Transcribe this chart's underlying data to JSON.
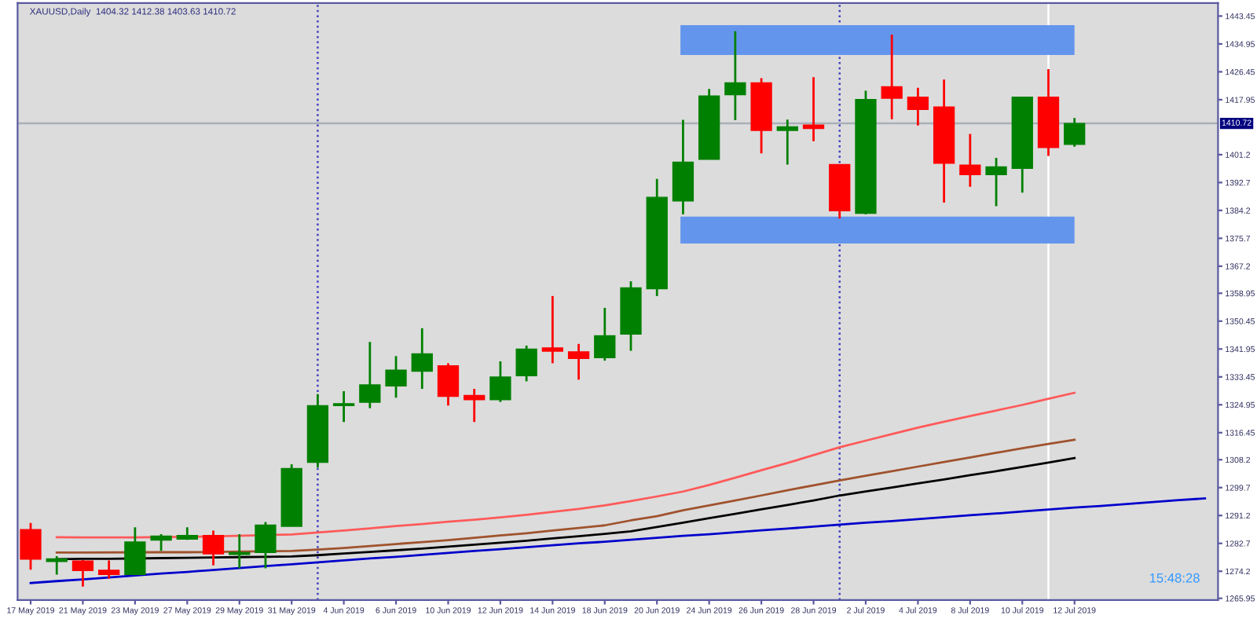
{
  "chart_data": {
    "type": "candlestick",
    "title": "XAUUSD,Daily  1404.32 1412.38 1403.63 1410.72",
    "categories": [
      "17 May 2019",
      null,
      "21 May 2019",
      null,
      "23 May 2019",
      null,
      "27 May 2019",
      null,
      "29 May 2019",
      null,
      "31 May 2019",
      null,
      "4 Jun 2019",
      null,
      "6 Jun 2019",
      null,
      "10 Jun 2019",
      null,
      "12 Jun 2019",
      null,
      "14 Jun 2019",
      null,
      "18 Jun 2019",
      null,
      "20 Jun 2019",
      null,
      "24 Jun 2019",
      null,
      "26 Jun 2019",
      null,
      "28 Jun 2019",
      null,
      "2 Jul 2019",
      null,
      "4 Jul 2019",
      null,
      "8 Jul 2019",
      null,
      "10 Jul 2019",
      null,
      "12 Jul 2019",
      null,
      null,
      null,
      null,
      null
    ],
    "ohlc": [
      [
        1286.9,
        1288.9,
        1274.7,
        1277.9
      ],
      [
        1277.2,
        1278.8,
        1273.2,
        1278.0
      ],
      [
        1277.3,
        1277.6,
        1269.5,
        1274.4
      ],
      [
        1274.5,
        1277.5,
        1272.0,
        1273.2
      ],
      [
        1273.2,
        1287.6,
        1273.0,
        1283.1
      ],
      [
        1283.7,
        1285.5,
        1280.4,
        1284.9
      ],
      [
        1284.0,
        1287.6,
        1283.8,
        1285.1
      ],
      [
        1285.1,
        1286.6,
        1276.0,
        1279.5
      ],
      [
        1279.3,
        1285.5,
        1275.1,
        1279.9
      ],
      [
        1279.9,
        1289.2,
        1275.1,
        1288.3
      ],
      [
        1287.9,
        1306.8,
        1287.9,
        1305.5
      ],
      [
        1307.4,
        1328.2,
        1305.8,
        1324.7
      ],
      [
        1324.7,
        1329.1,
        1319.7,
        1325.3
      ],
      [
        1325.7,
        1344.1,
        1323.9,
        1331.0
      ],
      [
        1330.7,
        1339.8,
        1327.1,
        1335.5
      ],
      [
        1335.2,
        1348.3,
        1329.8,
        1340.5
      ],
      [
        1336.8,
        1337.6,
        1324.7,
        1327.5
      ],
      [
        1327.8,
        1329.8,
        1319.7,
        1326.5
      ],
      [
        1326.5,
        1338.2,
        1325.8,
        1333.4
      ],
      [
        1333.8,
        1343.0,
        1332.1,
        1341.9
      ],
      [
        1342.3,
        1358.1,
        1337.6,
        1341.3
      ],
      [
        1341.1,
        1343.5,
        1332.6,
        1339.1
      ],
      [
        1339.3,
        1354.5,
        1338.4,
        1346.0
      ],
      [
        1346.5,
        1362.6,
        1341.4,
        1360.6
      ],
      [
        1360.3,
        1393.8,
        1358.1,
        1388.2
      ],
      [
        1387.1,
        1411.8,
        1383.0,
        1398.9
      ],
      [
        1399.8,
        1421.2,
        1399.8,
        1419.1
      ],
      [
        1419.5,
        1438.8,
        1411.7,
        1423.1
      ],
      [
        1423.1,
        1424.5,
        1401.6,
        1408.6
      ],
      [
        1408.6,
        1411.9,
        1398.2,
        1409.7
      ],
      [
        1410.2,
        1424.8,
        1405.3,
        1409.2
      ],
      [
        1398.2,
        1398.2,
        1381.7,
        1384.1
      ],
      [
        1383.3,
        1420.7,
        1383.0,
        1418.0
      ],
      [
        1421.9,
        1437.8,
        1412.0,
        1418.4
      ],
      [
        1418.7,
        1421.6,
        1410.1,
        1415.0
      ],
      [
        1415.7,
        1424.1,
        1386.6,
        1398.6
      ],
      [
        1398.0,
        1407.5,
        1391.4,
        1395.1
      ],
      [
        1395.1,
        1400.2,
        1385.5,
        1397.5
      ],
      [
        1397.0,
        1418.7,
        1389.6,
        1418.7
      ],
      [
        1418.7,
        1427.3,
        1400.8,
        1403.4
      ],
      [
        1404.32,
        1412.38,
        1403.63,
        1410.72
      ],
      null,
      null,
      null,
      null,
      null
    ],
    "colors": [
      "#ff0000",
      "#008000",
      "#ff0000",
      "#ff0000",
      "#008000",
      "#008000",
      "#008000",
      "#ff0000",
      "#008000",
      "#008000",
      "#008000",
      "#008000",
      "#008000",
      "#008000",
      "#008000",
      "#008000",
      "#ff0000",
      "#ff0000",
      "#008000",
      "#008000",
      "#ff0000",
      "#ff0000",
      "#008000",
      "#008000",
      "#008000",
      "#008000",
      "#008000",
      "#008000",
      "#ff0000",
      "#008000",
      "#ff0000",
      "#ff0000",
      "#008000",
      "#ff0000",
      "#ff0000",
      "#ff0000",
      "#ff0000",
      "#008000",
      "#008000",
      "#ff0000",
      "#008000",
      null,
      null,
      null,
      null,
      null
    ],
    "series": [
      {
        "type": "line",
        "color": "#ff5a5a",
        "values": [
          null,
          1284.6,
          1284.5,
          1284.5,
          1284.5,
          null,
          null,
          1284.8,
          null,
          null,
          1285.4,
          1286.0,
          1286.6,
          1287.3,
          1288.0,
          1288.6,
          1289.3,
          1289.9,
          1290.6,
          1291.4,
          1292.3,
          1293.2,
          1294.3,
          1295.6,
          1297.0,
          1298.5,
          1300.5,
          1302.7,
          1305.0,
          1307.2,
          1309.6,
          1312.0,
          1314.0,
          1316.0,
          1318.0,
          1319.8,
          1321.5,
          1323.2,
          1324.9,
          1326.8,
          1328.6,
          null,
          null,
          null,
          null,
          null
        ]
      },
      {
        "type": "line",
        "color": "#a0522d",
        "values": [
          null,
          1279.9,
          1279.9,
          null,
          null,
          1280.0,
          1280.0,
          1280.1,
          null,
          null,
          1280.4,
          1280.8,
          1281.3,
          1281.9,
          1282.5,
          1283.1,
          1283.7,
          1284.4,
          1285.1,
          1285.8,
          1286.6,
          1287.4,
          1288.2,
          1289.7,
          1291.0,
          1292.8,
          1294.3,
          1295.8,
          1297.3,
          1298.9,
          1300.4,
          1301.9,
          1303.3,
          1304.7,
          1306.1,
          1307.5,
          1308.9,
          1310.3,
          1311.7,
          1313.0,
          1314.3,
          null,
          null,
          null,
          null,
          null
        ]
      },
      {
        "type": "line",
        "color": "#000000",
        "values": [
          null,
          1277.9,
          1278.0,
          1278.0,
          null,
          1278.2,
          1278.3,
          1278.4,
          1278.5,
          1278.6,
          1278.7,
          1279.1,
          1279.6,
          1280.1,
          1280.6,
          1281.1,
          1281.7,
          1282.3,
          1282.9,
          1283.5,
          1284.2,
          1284.9,
          1285.6,
          1286.4,
          1287.7,
          1289.0,
          1290.4,
          1291.7,
          1293.1,
          1294.4,
          1295.8,
          1297.3,
          1298.5,
          1299.7,
          1301.0,
          1302.2,
          1303.5,
          1304.7,
          1306.0,
          1307.3,
          1308.7,
          null,
          null,
          null,
          null,
          null
        ]
      },
      {
        "type": "line",
        "color": "#0000cc",
        "values": [
          1270.6,
          1271.2,
          1271.7,
          1272.3,
          1272.9,
          1273.5,
          1274.0,
          1274.6,
          1275.2,
          1275.8,
          1276.3,
          1276.9,
          1277.5,
          1278.1,
          1278.6,
          1279.2,
          1279.8,
          1280.4,
          1280.9,
          1281.5,
          1282.1,
          1282.7,
          1283.2,
          1283.8,
          1284.4,
          1285.0,
          1285.5,
          1286.1,
          1286.7,
          1287.2,
          1287.8,
          1288.4,
          1289.0,
          1289.5,
          1290.1,
          1290.7,
          1291.3,
          1291.8,
          1292.4,
          1293.0,
          1293.6,
          1294.1,
          1294.7,
          1295.3,
          1295.9,
          1296.4
        ]
      }
    ],
    "ylim": [
      1265.4,
      1447.4
    ],
    "yticks": [
      1443.45,
      1434.95,
      1426.45,
      1417.95,
      1401.2,
      1392.7,
      1384.2,
      1375.7,
      1367.2,
      1358.95,
      1350.45,
      1341.95,
      1333.45,
      1324.95,
      1316.45,
      1308.2,
      1299.7,
      1291.2,
      1282.7,
      1274.2,
      1265.95
    ],
    "ref_lines": [
      {
        "axis": "y",
        "value": 1410.72,
        "label": "1410.72",
        "color": "#a9b0b8",
        "line_style": "solid"
      }
    ],
    "bands": [
      {
        "axis": "y",
        "from": 1431.6,
        "to": 1440.7,
        "color": "#6495ed"
      },
      {
        "axis": "y",
        "from": 1374.1,
        "to": 1382.3,
        "color": "#6495ed"
      }
    ],
    "annotations": [
      "15:48:28"
    ]
  }
}
